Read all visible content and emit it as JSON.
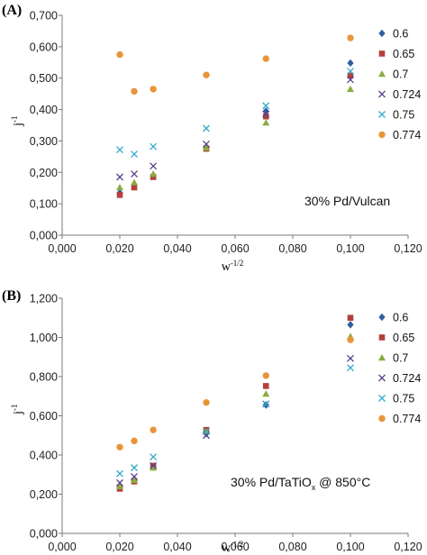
{
  "chart_data": [
    {
      "type": "scatter",
      "panel_label": "(A)",
      "note": "30% Pd/Vulcan",
      "xlabel_base": "w",
      "xlabel_exp": "-1/2",
      "ylabel_base": "j",
      "ylabel_exp": "-1",
      "xlim": [
        0,
        0.12
      ],
      "ylim": [
        0,
        0.7
      ],
      "x_ticks": [
        "0,000",
        "0,020",
        "0,040",
        "0,060",
        "0,080",
        "0,100",
        "0,120"
      ],
      "y_ticks": [
        "0,000",
        "0,100",
        "0,200",
        "0,300",
        "0,400",
        "0,500",
        "0,600",
        "0,700"
      ],
      "legend_position": "right",
      "grid": false,
      "x": [
        0.02,
        0.025,
        0.0316,
        0.05,
        0.0707,
        0.1
      ],
      "series": [
        {
          "name": "0.6",
          "marker": "diamond",
          "color": "#2e5f9e",
          "values": [
            0.135,
            0.16,
            0.19,
            0.28,
            0.395,
            0.548
          ]
        },
        {
          "name": "0.65",
          "marker": "square",
          "color": "#b3403c",
          "values": [
            0.128,
            0.152,
            0.185,
            0.275,
            0.378,
            0.508
          ]
        },
        {
          "name": "0.7",
          "marker": "triangle",
          "color": "#8aac3e",
          "values": [
            0.152,
            0.168,
            0.195,
            0.278,
            0.358,
            0.465
          ]
        },
        {
          "name": "0.724",
          "marker": "x",
          "color": "#5b3f8f",
          "values": [
            0.185,
            0.195,
            0.22,
            0.29,
            0.385,
            0.495
          ]
        },
        {
          "name": "0.75",
          "marker": "x",
          "color": "#33aacb",
          "values": [
            0.272,
            0.258,
            0.282,
            0.34,
            0.412,
            0.522
          ]
        },
        {
          "name": "0.774",
          "marker": "circle",
          "color": "#e8953a",
          "values": [
            0.575,
            0.458,
            0.465,
            0.51,
            0.562,
            0.628
          ]
        }
      ]
    },
    {
      "type": "scatter",
      "panel_label": "(B)",
      "note_base": "30% Pd/TaTiO",
      "note_sub": "x",
      "note_tail": " @ 850°C",
      "xlabel_base": "w",
      "xlabel_exp": "-1/2",
      "ylabel_base": "j",
      "ylabel_exp": "-1",
      "xlim": [
        0,
        0.12
      ],
      "ylim": [
        0,
        1.2
      ],
      "x_ticks": [
        "0,000",
        "0,020",
        "0,040",
        "0,060",
        "0,080",
        "0,100",
        "0,120"
      ],
      "y_ticks": [
        "0,000",
        "0,200",
        "0,400",
        "0,600",
        "0,800",
        "1,000",
        "1,200"
      ],
      "legend_position": "right",
      "grid": false,
      "x": [
        0.02,
        0.025,
        0.0316,
        0.05,
        0.0707,
        0.1
      ],
      "series": [
        {
          "name": "0.6",
          "marker": "diamond",
          "color": "#2e5f9e",
          "values": [
            0.235,
            0.27,
            0.34,
            0.51,
            0.655,
            1.065
          ]
        },
        {
          "name": "0.65",
          "marker": "square",
          "color": "#b3403c",
          "values": [
            0.228,
            0.265,
            0.345,
            0.528,
            0.752,
            1.1
          ]
        },
        {
          "name": "0.7",
          "marker": "triangle",
          "color": "#8aac3e",
          "values": [
            0.24,
            0.272,
            0.335,
            0.52,
            0.712,
            1.005
          ]
        },
        {
          "name": "0.724",
          "marker": "x",
          "color": "#5b3f8f",
          "values": [
            0.258,
            0.29,
            0.345,
            0.5,
            0.66,
            0.893
          ]
        },
        {
          "name": "0.75",
          "marker": "x",
          "color": "#33aacb",
          "values": [
            0.305,
            0.335,
            0.39,
            0.52,
            0.66,
            0.845
          ]
        },
        {
          "name": "0.774",
          "marker": "circle",
          "color": "#e8953a",
          "values": [
            0.44,
            0.472,
            0.528,
            0.668,
            0.805,
            0.988
          ]
        }
      ]
    }
  ]
}
